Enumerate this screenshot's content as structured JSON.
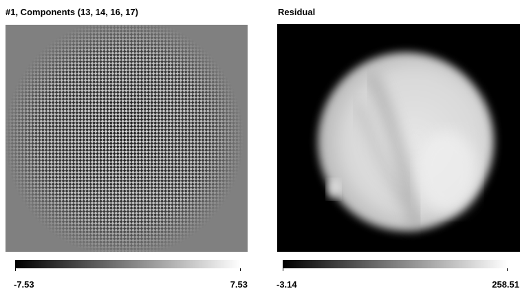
{
  "panels": [
    {
      "title": "#1, Components (13, 14, 16, 17)",
      "colorbar": {
        "min": -7.53,
        "max": 7.53
      }
    },
    {
      "title": "Residual",
      "colorbar": {
        "min": -3.14,
        "max": 258.51
      }
    }
  ]
}
